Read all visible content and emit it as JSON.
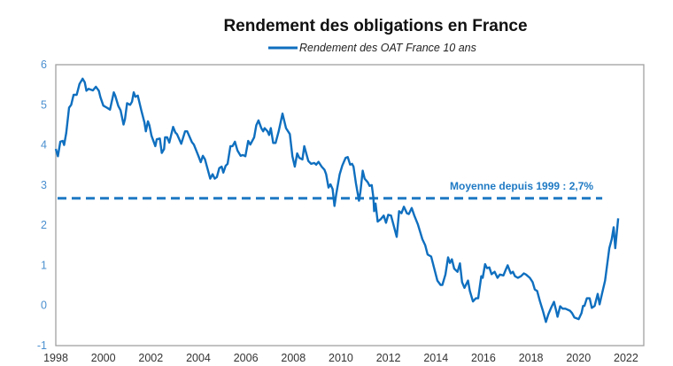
{
  "chart_data": {
    "type": "line",
    "title": "Rendement des obligations en France",
    "legend": {
      "position": "top",
      "entries": [
        "Rendement des OAT France 10 ans"
      ]
    },
    "xlabel": "",
    "ylabel": "",
    "xlim": [
      1998,
      2022.75
    ],
    "ylim": [
      -1,
      6
    ],
    "x_ticks": [
      "1998",
      "2000",
      "2002",
      "2004",
      "2006",
      "2008",
      "2010",
      "2012",
      "2014",
      "2016",
      "2018",
      "2020",
      "2022"
    ],
    "y_ticks": [
      "-1",
      "0",
      "1",
      "2",
      "3",
      "4",
      "5",
      "6"
    ],
    "grid": false,
    "colors": {
      "series": "#0f6fbf",
      "average": "#1f7ac4",
      "frame": "#a0a0a0"
    },
    "series": [
      {
        "name": "Rendement des OAT France 10 ans",
        "points": [
          [
            1998.0,
            3.9
          ],
          [
            1998.09,
            3.72
          ],
          [
            1998.19,
            4.08
          ],
          [
            1998.29,
            4.1
          ],
          [
            1998.35,
            4.0
          ],
          [
            1998.44,
            4.3
          ],
          [
            1998.56,
            4.93
          ],
          [
            1998.65,
            5.0
          ],
          [
            1998.75,
            5.25
          ],
          [
            1998.88,
            5.25
          ],
          [
            1999.0,
            5.52
          ],
          [
            1999.13,
            5.65
          ],
          [
            1999.22,
            5.56
          ],
          [
            1999.29,
            5.35
          ],
          [
            1999.38,
            5.4
          ],
          [
            1999.56,
            5.36
          ],
          [
            1999.69,
            5.45
          ],
          [
            1999.81,
            5.35
          ],
          [
            1999.88,
            5.19
          ],
          [
            2000.0,
            4.98
          ],
          [
            2000.15,
            4.93
          ],
          [
            2000.28,
            4.88
          ],
          [
            2000.44,
            5.31
          ],
          [
            2000.5,
            5.23
          ],
          [
            2000.63,
            4.97
          ],
          [
            2000.73,
            4.86
          ],
          [
            2000.85,
            4.51
          ],
          [
            2000.91,
            4.64
          ],
          [
            2001.0,
            5.04
          ],
          [
            2001.13,
            5.0
          ],
          [
            2001.21,
            5.08
          ],
          [
            2001.28,
            5.31
          ],
          [
            2001.35,
            5.2
          ],
          [
            2001.45,
            5.23
          ],
          [
            2001.6,
            4.86
          ],
          [
            2001.73,
            4.56
          ],
          [
            2001.79,
            4.34
          ],
          [
            2001.88,
            4.59
          ],
          [
            2001.94,
            4.49
          ],
          [
            2002.03,
            4.23
          ],
          [
            2002.19,
            3.97
          ],
          [
            2002.25,
            4.14
          ],
          [
            2002.38,
            4.16
          ],
          [
            2002.46,
            3.8
          ],
          [
            2002.56,
            3.9
          ],
          [
            2002.6,
            4.19
          ],
          [
            2002.69,
            4.19
          ],
          [
            2002.78,
            4.06
          ],
          [
            2002.94,
            4.45
          ],
          [
            2003.03,
            4.31
          ],
          [
            2003.1,
            4.27
          ],
          [
            2003.28,
            4.03
          ],
          [
            2003.44,
            4.34
          ],
          [
            2003.53,
            4.34
          ],
          [
            2003.73,
            4.07
          ],
          [
            2003.81,
            4.01
          ],
          [
            2004.0,
            3.73
          ],
          [
            2004.1,
            3.57
          ],
          [
            2004.19,
            3.73
          ],
          [
            2004.28,
            3.64
          ],
          [
            2004.38,
            3.42
          ],
          [
            2004.5,
            3.16
          ],
          [
            2004.6,
            3.27
          ],
          [
            2004.69,
            3.16
          ],
          [
            2004.78,
            3.2
          ],
          [
            2004.88,
            3.42
          ],
          [
            2004.98,
            3.46
          ],
          [
            2005.05,
            3.31
          ],
          [
            2005.15,
            3.48
          ],
          [
            2005.23,
            3.53
          ],
          [
            2005.35,
            3.97
          ],
          [
            2005.44,
            3.97
          ],
          [
            2005.54,
            4.08
          ],
          [
            2005.65,
            3.86
          ],
          [
            2005.78,
            3.73
          ],
          [
            2005.88,
            3.75
          ],
          [
            2005.98,
            3.72
          ],
          [
            2006.1,
            4.1
          ],
          [
            2006.19,
            4.01
          ],
          [
            2006.35,
            4.19
          ],
          [
            2006.44,
            4.49
          ],
          [
            2006.53,
            4.61
          ],
          [
            2006.65,
            4.42
          ],
          [
            2006.73,
            4.34
          ],
          [
            2006.79,
            4.42
          ],
          [
            2006.91,
            4.34
          ],
          [
            2006.98,
            4.25
          ],
          [
            2007.05,
            4.42
          ],
          [
            2007.15,
            4.05
          ],
          [
            2007.25,
            4.05
          ],
          [
            2007.38,
            4.34
          ],
          [
            2007.54,
            4.78
          ],
          [
            2007.69,
            4.42
          ],
          [
            2007.85,
            4.27
          ],
          [
            2007.96,
            3.72
          ],
          [
            2008.06,
            3.46
          ],
          [
            2008.16,
            3.79
          ],
          [
            2008.25,
            3.68
          ],
          [
            2008.38,
            3.64
          ],
          [
            2008.46,
            3.97
          ],
          [
            2008.63,
            3.6
          ],
          [
            2008.75,
            3.53
          ],
          [
            2008.88,
            3.55
          ],
          [
            2008.96,
            3.51
          ],
          [
            2009.06,
            3.58
          ],
          [
            2009.19,
            3.46
          ],
          [
            2009.31,
            3.38
          ],
          [
            2009.38,
            3.27
          ],
          [
            2009.48,
            2.94
          ],
          [
            2009.56,
            3.02
          ],
          [
            2009.65,
            2.9
          ],
          [
            2009.73,
            2.48
          ],
          [
            2009.8,
            2.76
          ],
          [
            2009.95,
            3.27
          ],
          [
            2010.06,
            3.49
          ],
          [
            2010.2,
            3.68
          ],
          [
            2010.29,
            3.7
          ],
          [
            2010.39,
            3.51
          ],
          [
            2010.47,
            3.53
          ],
          [
            2010.53,
            3.46
          ],
          [
            2010.63,
            3.05
          ],
          [
            2010.76,
            2.61
          ],
          [
            2010.82,
            2.83
          ],
          [
            2010.92,
            3.36
          ],
          [
            2011.0,
            3.16
          ],
          [
            2011.13,
            3.07
          ],
          [
            2011.21,
            2.98
          ],
          [
            2011.3,
            3.0
          ],
          [
            2011.37,
            2.68
          ],
          [
            2011.4,
            2.35
          ],
          [
            2011.46,
            2.54
          ],
          [
            2011.55,
            2.09
          ],
          [
            2011.68,
            2.15
          ],
          [
            2011.8,
            2.24
          ],
          [
            2011.9,
            2.06
          ],
          [
            2011.99,
            2.26
          ],
          [
            2012.11,
            2.24
          ],
          [
            2012.24,
            1.95
          ],
          [
            2012.35,
            1.71
          ],
          [
            2012.45,
            2.35
          ],
          [
            2012.55,
            2.3
          ],
          [
            2012.65,
            2.46
          ],
          [
            2012.78,
            2.3
          ],
          [
            2012.86,
            2.28
          ],
          [
            2012.98,
            2.43
          ],
          [
            2013.09,
            2.24
          ],
          [
            2013.24,
            2.02
          ],
          [
            2013.43,
            1.65
          ],
          [
            2013.55,
            1.5
          ],
          [
            2013.65,
            1.27
          ],
          [
            2013.8,
            1.22
          ],
          [
            2013.93,
            0.92
          ],
          [
            2014.06,
            0.62
          ],
          [
            2014.2,
            0.51
          ],
          [
            2014.27,
            0.51
          ],
          [
            2014.4,
            0.77
          ],
          [
            2014.51,
            1.2
          ],
          [
            2014.59,
            1.06
          ],
          [
            2014.67,
            1.15
          ],
          [
            2014.77,
            0.92
          ],
          [
            2014.91,
            0.84
          ],
          [
            2015.01,
            1.05
          ],
          [
            2015.1,
            0.58
          ],
          [
            2015.2,
            0.44
          ],
          [
            2015.35,
            0.62
          ],
          [
            2015.43,
            0.36
          ],
          [
            2015.56,
            0.1
          ],
          [
            2015.68,
            0.18
          ],
          [
            2015.78,
            0.18
          ],
          [
            2015.91,
            0.73
          ],
          [
            2015.97,
            0.69
          ],
          [
            2016.07,
            1.03
          ],
          [
            2016.15,
            0.93
          ],
          [
            2016.25,
            0.95
          ],
          [
            2016.34,
            0.78
          ],
          [
            2016.47,
            0.84
          ],
          [
            2016.59,
            0.69
          ],
          [
            2016.69,
            0.77
          ],
          [
            2016.84,
            0.75
          ],
          [
            2016.93,
            0.88
          ],
          [
            2017.02,
            1.0
          ],
          [
            2017.15,
            0.8
          ],
          [
            2017.24,
            0.84
          ],
          [
            2017.33,
            0.73
          ],
          [
            2017.45,
            0.69
          ],
          [
            2017.58,
            0.73
          ],
          [
            2017.7,
            0.8
          ],
          [
            2017.79,
            0.77
          ],
          [
            2017.95,
            0.69
          ],
          [
            2018.07,
            0.58
          ],
          [
            2018.16,
            0.4
          ],
          [
            2018.26,
            0.36
          ],
          [
            2018.38,
            0.1
          ],
          [
            2018.51,
            -0.15
          ],
          [
            2018.63,
            -0.41
          ],
          [
            2018.73,
            -0.22
          ],
          [
            2018.86,
            -0.04
          ],
          [
            2018.97,
            0.09
          ],
          [
            2019.07,
            -0.15
          ],
          [
            2019.12,
            -0.28
          ],
          [
            2019.23,
            -0.02
          ],
          [
            2019.33,
            -0.08
          ],
          [
            2019.45,
            -0.08
          ],
          [
            2019.64,
            -0.13
          ],
          [
            2019.73,
            -0.19
          ],
          [
            2019.83,
            -0.3
          ],
          [
            2020.01,
            -0.34
          ],
          [
            2020.13,
            -0.19
          ],
          [
            2020.19,
            -0.01
          ],
          [
            2020.25,
            -0.01
          ],
          [
            2020.35,
            0.18
          ],
          [
            2020.47,
            0.18
          ],
          [
            2020.56,
            -0.06
          ],
          [
            2020.68,
            -0.01
          ],
          [
            2020.81,
            0.29
          ],
          [
            2020.89,
            0.03
          ],
          [
            2020.99,
            0.29
          ],
          [
            2021.12,
            0.62
          ],
          [
            2021.3,
            1.43
          ],
          [
            2021.4,
            1.65
          ],
          [
            2021.48,
            1.95
          ],
          [
            2021.55,
            1.43
          ],
          [
            2021.67,
            2.17
          ]
        ]
      }
    ],
    "reference_line": {
      "value": 2.7,
      "x_range": [
        1998,
        2021
      ],
      "style": "dashed",
      "label": "Moyenne depuis 1999 : 2,7%"
    }
  }
}
